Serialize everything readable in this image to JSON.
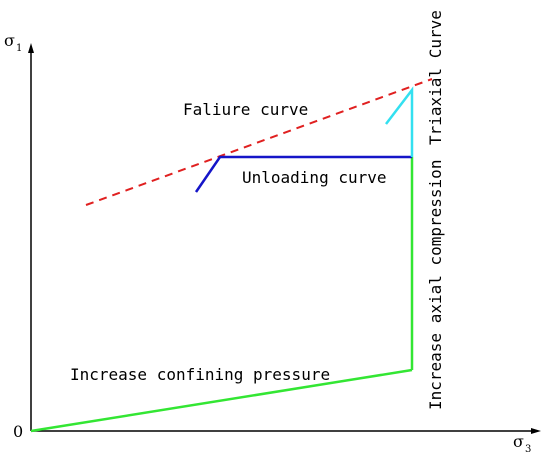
{
  "axes": {
    "y_symbol": "σ",
    "y_subscript": "1",
    "x_symbol": "σ",
    "x_subscript": "3",
    "origin": "0"
  },
  "labels": {
    "failure_curve": "Faliure curve",
    "unloading_curve": "Unloading curve",
    "confining": "Increase confining pressure",
    "axial": "Increase axial compression",
    "triaxial": "Triaxial Curve"
  },
  "colors": {
    "axes": "#000000",
    "failure_curve": "#e02020",
    "unloading_curve": "#1515c8",
    "loading_path": "#33e633",
    "triaxial_curve": "#33e0f0"
  }
}
